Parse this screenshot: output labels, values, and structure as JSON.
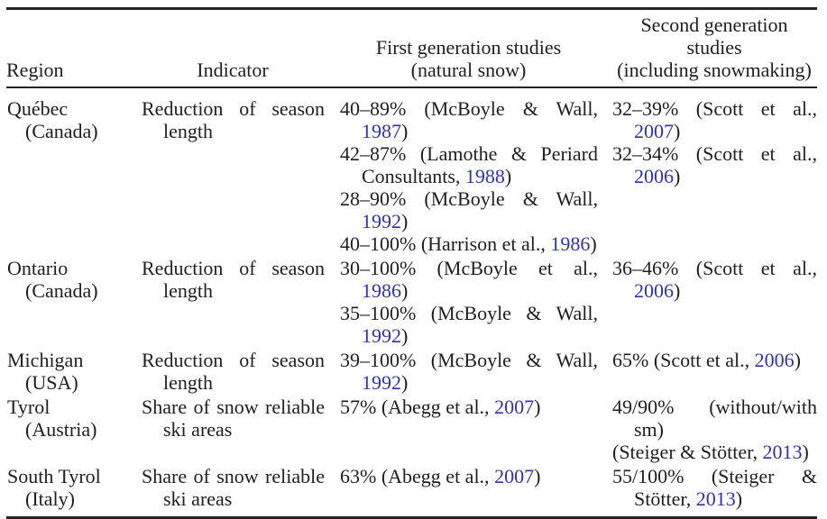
{
  "table": {
    "link_color": "#3131b3",
    "text_color": "#1f1f1f",
    "headers": [
      {
        "lines": [
          "Region"
        ]
      },
      {
        "lines": [
          "Indicator"
        ]
      },
      {
        "lines": [
          "First generation studies",
          "(natural snow)"
        ]
      },
      {
        "lines": [
          "Second generation",
          "studies",
          "(including snowmaking)"
        ]
      }
    ],
    "rows": [
      {
        "region": "Québec",
        "country": "(Canada)",
        "indicator": "Reduction of season length",
        "first_gen": [
          {
            "text": "40–89% (McBoyle & Wall, ",
            "year": "1987",
            "after": ")"
          },
          {
            "text": "42–87% (Lamothe & Periard Consultants, ",
            "year": "1988",
            "after": ")"
          },
          {
            "text": "28–90% (McBoyle & Wall, ",
            "year": "1992",
            "after": ")"
          },
          {
            "text": "40–100% (Harrison et al., ",
            "year": "1986",
            "after": ")"
          }
        ],
        "second_gen": [
          {
            "text": "32–39% (Scott et al., ",
            "year": "2007",
            "after": ")"
          },
          {
            "text": "32–34% (Scott et al., ",
            "year": "2006",
            "after": ")"
          }
        ]
      },
      {
        "region": "Ontario",
        "country": "(Canada)",
        "indicator": "Reduction of season length",
        "first_gen": [
          {
            "text": "30–100% (McBoyle et al., ",
            "year": "1986",
            "after": ")"
          },
          {
            "text": "35–100% (McBoyle & Wall, ",
            "year": "1992",
            "after": ")"
          }
        ],
        "second_gen": [
          {
            "text": "36–46% (Scott et al., ",
            "year": "2006",
            "after": ")"
          }
        ]
      },
      {
        "region": "Michigan",
        "country": "(USA)",
        "indicator": "Reduction of season length",
        "first_gen": [
          {
            "text": "39–100% (McBoyle & Wall, ",
            "year": "1992",
            "after": ")"
          }
        ],
        "second_gen": [
          {
            "text": "65% (Scott et al., ",
            "year": "2006",
            "after": ")"
          }
        ]
      },
      {
        "region": "Tyrol",
        "country": "(Austria)",
        "indicator": "Share of snow reliable ski areas",
        "first_gen": [
          {
            "text": "57% (Abegg et al., ",
            "year": "2007",
            "after": ")"
          }
        ],
        "second_gen": [
          {
            "text": "49/90% (without/with sm)",
            "year": "",
            "after": ""
          },
          {
            "text": "(Steiger & Stötter, ",
            "year": "2013",
            "after": ")"
          }
        ]
      },
      {
        "region": "South Tyrol",
        "country": "(Italy)",
        "indicator": "Share of snow reliable ski areas",
        "first_gen": [
          {
            "text": "63% (Abegg et al., ",
            "year": "2007",
            "after": ")"
          }
        ],
        "second_gen": [
          {
            "text": "55/100% (Steiger & Stötter, ",
            "year": "2013",
            "after": ")"
          }
        ]
      }
    ]
  }
}
